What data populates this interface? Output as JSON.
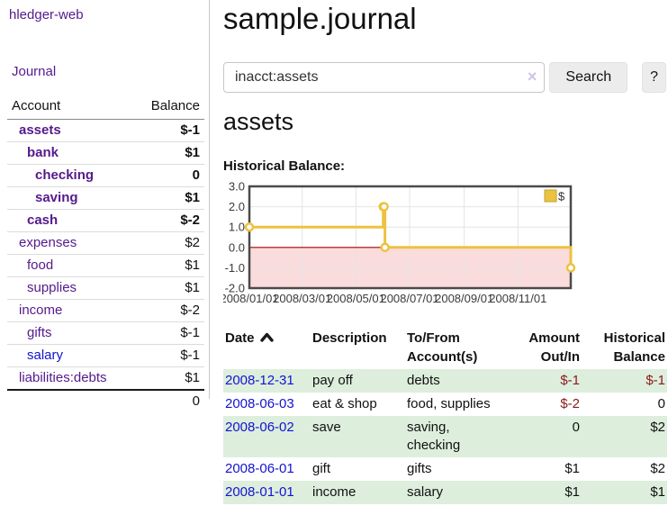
{
  "app": {
    "brand": "hledger-web"
  },
  "sidebar": {
    "journal_link": "Journal",
    "accounts_table": {
      "headers": {
        "account": "Account",
        "balance": "Balance"
      },
      "rows": [
        {
          "name": "assets",
          "balance": "$-1"
        },
        {
          "name": "bank",
          "balance": "$1"
        },
        {
          "name": "checking",
          "balance": "0"
        },
        {
          "name": "saving",
          "balance": "$1"
        },
        {
          "name": "cash",
          "balance": "$-2"
        },
        {
          "name": "expenses",
          "balance": "$2"
        },
        {
          "name": "food",
          "balance": "$1"
        },
        {
          "name": "supplies",
          "balance": "$1"
        },
        {
          "name": "income",
          "balance": "$-2"
        },
        {
          "name": "gifts",
          "balance": "$-1"
        },
        {
          "name": "salary",
          "balance": "$-1"
        },
        {
          "name": "liabilities:debts",
          "balance": "$1"
        }
      ],
      "total": "0"
    }
  },
  "main": {
    "title": "sample.journal",
    "search": {
      "value": "inacct:assets",
      "clear_icon": "×",
      "search_button": "Search",
      "help_button": "?"
    },
    "account_heading": "assets",
    "chart_label": "Historical Balance:"
  },
  "register": {
    "headers": {
      "date": "Date",
      "description": "Description",
      "accounts": "To/From Account(s)",
      "amount": "Amount Out/In",
      "balance": "Historical Balance"
    },
    "rows": [
      {
        "date": "2008-12-31",
        "description": "pay off",
        "accounts": "debts",
        "amount": "$-1",
        "balance": "$-1"
      },
      {
        "date": "2008-06-03",
        "description": "eat & shop",
        "accounts": "food, supplies",
        "amount": "$-2",
        "balance": "0"
      },
      {
        "date": "2008-06-02",
        "description": "save",
        "accounts": "saving, checking",
        "amount": "0",
        "balance": "$2"
      },
      {
        "date": "2008-06-01",
        "description": "gift",
        "accounts": "gifts",
        "amount": "$1",
        "balance": "$2"
      },
      {
        "date": "2008-01-01",
        "description": "income",
        "accounts": "salary",
        "amount": "$1",
        "balance": "$1"
      }
    ]
  },
  "chart_data": {
    "type": "line",
    "step": true,
    "title": "Historical Balance:",
    "x_range": [
      "2008-01-01",
      "2008-12-31"
    ],
    "ylim": [
      -2,
      3
    ],
    "yticks": [
      {
        "label": "3.0",
        "value": 3
      },
      {
        "label": "2.0",
        "value": 2
      },
      {
        "label": "1.0",
        "value": 1
      },
      {
        "label": "0.0",
        "value": 0
      },
      {
        "label": "-1.0",
        "value": -1
      },
      {
        "label": "-2.0",
        "value": -2
      }
    ],
    "xticks": [
      {
        "label": "2008/01/01",
        "date": "2008-01-01"
      },
      {
        "label": "2008/03/01",
        "date": "2008-03-01"
      },
      {
        "label": "2008/05/01",
        "date": "2008-05-01"
      },
      {
        "label": "2008/07/01",
        "date": "2008-07-01"
      },
      {
        "label": "2008/09/01",
        "date": "2008-09-01"
      },
      {
        "label": "2008/11/01",
        "date": "2008-11-01"
      }
    ],
    "series": [
      {
        "name": "$",
        "color": "#edc240",
        "points": [
          [
            "2008-01-01",
            1
          ],
          [
            "2008-06-01",
            2
          ],
          [
            "2008-06-02",
            2
          ],
          [
            "2008-06-03",
            0
          ],
          [
            "2008-12-31",
            -1
          ]
        ]
      }
    ],
    "legend_position": "top-right",
    "negative_region_color": "#fbdcdc",
    "zero_line_color": "#a40000",
    "grid_color": "#e4e4e4"
  }
}
